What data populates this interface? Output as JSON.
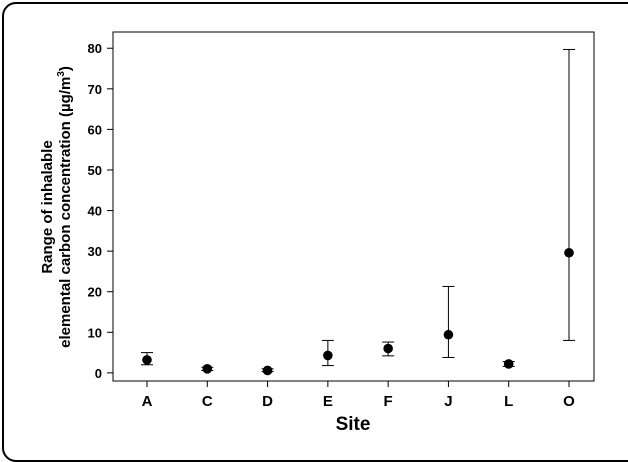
{
  "chart_data": {
    "type": "scatter",
    "title": "",
    "xlabel": "Site",
    "ylabel_line1": "Range of inhalable",
    "ylabel_line2_prefix": "elemental carbon concentration (µg/m",
    "ylabel_sup": "3",
    "ylabel_suffix": ")",
    "ylim": [
      -2,
      84
    ],
    "yticks": [
      "0",
      "10",
      "20",
      "30",
      "40",
      "50",
      "60",
      "70",
      "80"
    ],
    "categories": [
      "A",
      "C",
      "D",
      "E",
      "F",
      "J",
      "L",
      "O"
    ],
    "points": [
      {
        "site": "A",
        "value": 3.2,
        "min": 2.0,
        "max": 5.0
      },
      {
        "site": "C",
        "value": 1.0,
        "min": 0.6,
        "max": 1.4
      },
      {
        "site": "D",
        "value": 0.6,
        "min": 0.3,
        "max": 1.0
      },
      {
        "site": "E",
        "value": 4.3,
        "min": 1.8,
        "max": 8.0
      },
      {
        "site": "F",
        "value": 6.0,
        "min": 4.2,
        "max": 7.6
      },
      {
        "site": "J",
        "value": 9.4,
        "min": 3.8,
        "max": 21.3
      },
      {
        "site": "L",
        "value": 2.2,
        "min": 1.6,
        "max": 2.8
      },
      {
        "site": "O",
        "value": 29.6,
        "min": 8.0,
        "max": 79.7
      }
    ],
    "grid": false,
    "marker_color": "#000000"
  }
}
